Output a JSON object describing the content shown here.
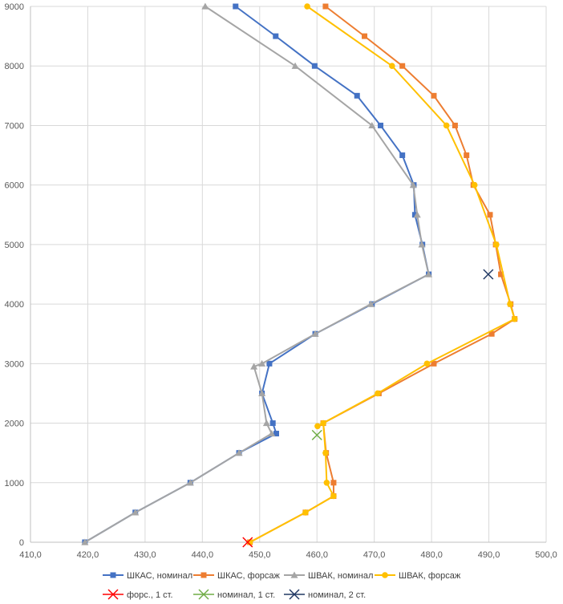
{
  "chart_data": {
    "type": "line",
    "title": "",
    "xlabel": "",
    "ylabel": "",
    "xlim": [
      410,
      500
    ],
    "ylim": [
      0,
      9000
    ],
    "x_ticks": [
      410,
      420,
      430,
      440,
      450,
      460,
      470,
      480,
      490,
      500
    ],
    "x_tick_labels": [
      "410,0",
      "420,0",
      "430,0",
      "440,0",
      "450,0",
      "460,0",
      "470,0",
      "480,0",
      "490,0",
      "500,0"
    ],
    "y_ticks": [
      0,
      1000,
      2000,
      3000,
      4000,
      5000,
      6000,
      7000,
      8000,
      9000
    ],
    "y_tick_labels": [
      "0",
      "1000",
      "2000",
      "3000",
      "4000",
      "5000",
      "6000",
      "7000",
      "8000",
      "9000"
    ],
    "grid": true,
    "legend_position": "bottom",
    "series": [
      {
        "name": "ШКАС, номинал",
        "color": "#4472C4",
        "marker": "square",
        "points": [
          [
            419.5,
            0
          ],
          [
            428.3,
            500
          ],
          [
            437.9,
            1000
          ],
          [
            446.4,
            1500
          ],
          [
            452.9,
            1825
          ],
          [
            452.3,
            2000
          ],
          [
            450.4,
            2500
          ],
          [
            451.7,
            3000
          ],
          [
            459.7,
            3500
          ],
          [
            469.6,
            4000
          ],
          [
            479.5,
            4500
          ],
          [
            478.4,
            5000
          ],
          [
            477.1,
            5500
          ],
          [
            476.9,
            6000
          ],
          [
            474.9,
            6500
          ],
          [
            471.1,
            7000
          ],
          [
            467.0,
            7500
          ],
          [
            459.6,
            8000
          ],
          [
            452.8,
            8500
          ],
          [
            445.8,
            9000
          ]
        ]
      },
      {
        "name": "ШКАС, форсаж",
        "color": "#ED7D31",
        "marker": "square",
        "points": [
          [
            448.3,
            0
          ],
          [
            458.0,
            500
          ],
          [
            462.9,
            775
          ],
          [
            462.9,
            1000
          ],
          [
            461.6,
            1500
          ],
          [
            461.1,
            2000
          ],
          [
            470.8,
            2500
          ],
          [
            480.4,
            3000
          ],
          [
            490.5,
            3500
          ],
          [
            494.5,
            3750
          ],
          [
            493.8,
            4000
          ],
          [
            492.1,
            4500
          ],
          [
            491.2,
            5000
          ],
          [
            490.2,
            5500
          ],
          [
            487.3,
            6000
          ],
          [
            486.1,
            6500
          ],
          [
            484.1,
            7000
          ],
          [
            480.4,
            7500
          ],
          [
            474.9,
            8000
          ],
          [
            468.3,
            8500
          ],
          [
            461.5,
            9000
          ]
        ]
      },
      {
        "name": "ШВАК, номинал",
        "color": "#A5A5A5",
        "marker": "triangle",
        "points": [
          [
            419.5,
            0
          ],
          [
            428.3,
            500
          ],
          [
            437.9,
            1000
          ],
          [
            446.4,
            1500
          ],
          [
            452.1,
            1825
          ],
          [
            451.2,
            2000
          ],
          [
            450.4,
            2500
          ],
          [
            449.0,
            2950
          ],
          [
            450.4,
            3000
          ],
          [
            459.7,
            3500
          ],
          [
            469.4,
            4000
          ],
          [
            479.5,
            4500
          ],
          [
            478.3,
            5000
          ],
          [
            477.5,
            5500
          ],
          [
            476.8,
            6000
          ],
          [
            469.6,
            7000
          ],
          [
            456.2,
            8000
          ],
          [
            440.5,
            9000
          ]
        ]
      },
      {
        "name": "ШВАК, форсаж",
        "color": "#FFC000",
        "marker": "circle",
        "points": [
          [
            448.3,
            0
          ],
          [
            458.0,
            500
          ],
          [
            462.9,
            775
          ],
          [
            461.7,
            1000
          ],
          [
            461.5,
            1500
          ],
          [
            461.1,
            2000
          ],
          [
            460.1,
            1950
          ],
          [
            470.6,
            2500
          ],
          [
            479.2,
            3000
          ],
          [
            494.5,
            3750
          ],
          [
            493.7,
            4000
          ],
          [
            491.3,
            5000
          ],
          [
            487.5,
            6000
          ],
          [
            482.6,
            7000
          ],
          [
            473.1,
            8000
          ],
          [
            458.3,
            9000
          ]
        ]
      },
      {
        "name": "форс., 1 ст.",
        "color": "#FF0000",
        "marker": "x",
        "points": [
          [
            447.9,
            0
          ]
        ]
      },
      {
        "name": "номинал, 1 ст.",
        "color": "#70AD47",
        "marker": "x",
        "points": [
          [
            460.0,
            1800
          ]
        ]
      },
      {
        "name": "номинал, 2 ст.",
        "color": "#203864",
        "marker": "x",
        "points": [
          [
            489.9,
            4500
          ]
        ]
      }
    ]
  }
}
